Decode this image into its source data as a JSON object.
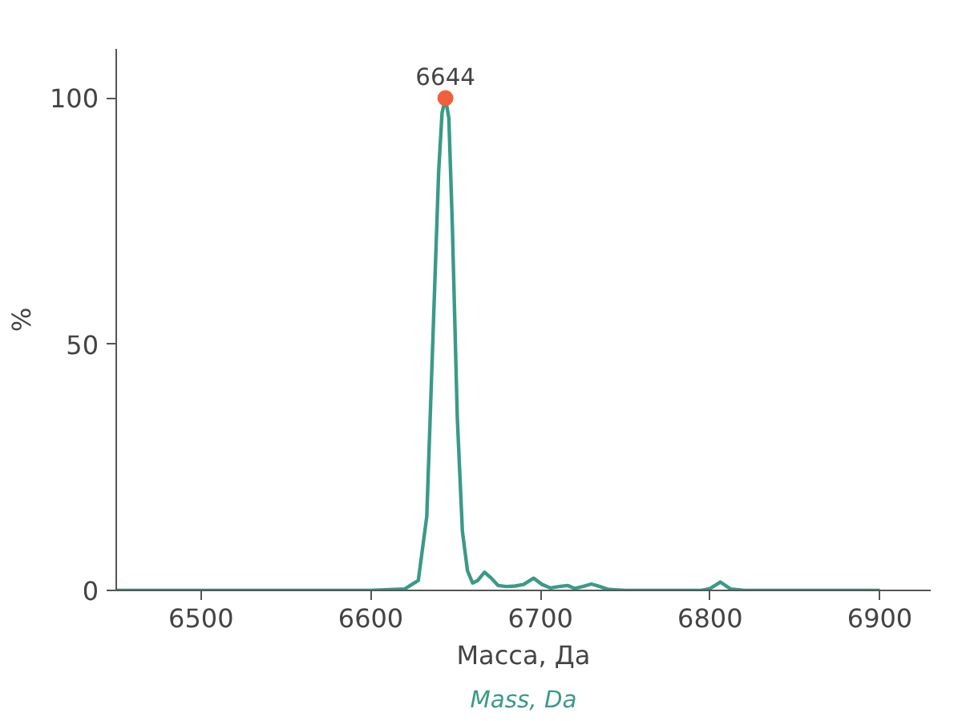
{
  "chart_data": {
    "type": "line",
    "xlabel": "Масса, Да",
    "ylabel": "%",
    "series": [
      {
        "color": "#3a9a88",
        "x": [
          6450,
          6600,
          6620,
          6628,
          6633,
          6637,
          6640,
          6642,
          6644,
          6646,
          6648,
          6651,
          6654,
          6657,
          6660,
          6663,
          6667,
          6671,
          6675,
          6680,
          6685,
          6690,
          6696,
          6701,
          6706,
          6711,
          6716,
          6720,
          6725,
          6730,
          6735,
          6740,
          6750,
          6795,
          6800,
          6806,
          6812,
          6820,
          6900
        ],
        "values": [
          0,
          0,
          0.3,
          2,
          15,
          55,
          85,
          97,
          100,
          96,
          75,
          35,
          12,
          4,
          1.5,
          2,
          3.7,
          2.5,
          1,
          0.8,
          0.9,
          1.2,
          2.5,
          1.2,
          0.5,
          0.8,
          1,
          0.4,
          0.8,
          1.3,
          0.8,
          0.2,
          0,
          0,
          0.4,
          1.7,
          0.3,
          0,
          0
        ]
      },
      {
        "type": "scatter",
        "marker": "circle",
        "color": "#f0603a",
        "x": [
          6644
        ],
        "values": [
          100
        ]
      }
    ],
    "annotations": [
      {
        "text": "6644",
        "x": 6644,
        "y": 100
      },
      "Mass, Da"
    ],
    "xlim": [
      6450,
      6930
    ],
    "ylim": [
      0,
      110
    ],
    "xticks": [
      6500,
      6600,
      6700,
      6800,
      6900
    ],
    "yticks": [
      0,
      50,
      100
    ],
    "grid": false,
    "line_style": "solid"
  }
}
